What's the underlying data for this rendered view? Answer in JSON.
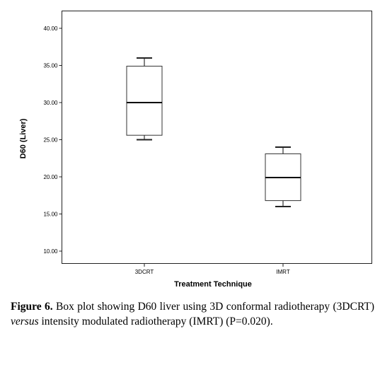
{
  "chart_data": {
    "type": "boxplot",
    "xlabel": "Treatment Technique",
    "ylabel": "D60 (Liver)",
    "ylim": [
      10,
      40
    ],
    "yticks": [
      "10.00",
      "15.00",
      "20.00",
      "25.00",
      "30.00",
      "35.00",
      "40.00"
    ],
    "ytick_values": [
      10,
      15,
      20,
      25,
      30,
      35,
      40
    ],
    "categories": [
      "3DCRT",
      "IMRT"
    ],
    "boxes": [
      {
        "name": "3DCRT",
        "min": 25.0,
        "q1": 25.6,
        "median": 30.0,
        "q3": 34.9,
        "max": 36.0
      },
      {
        "name": "IMRT",
        "min": 16.0,
        "q1": 16.8,
        "median": 19.9,
        "q3": 23.1,
        "max": 24.0
      }
    ],
    "grid": false,
    "legend": "none"
  },
  "caption": {
    "label": "Figure 6.",
    "text_1": " Box plot showing D60 liver using 3D conformal radiotherapy (3DCRT) ",
    "text_italic": "versus",
    "text_2": " intensity modulated radiotherapy (IMRT) (P=0.020)."
  },
  "colors": {
    "frame": "#222222",
    "box_stroke": "#333333",
    "median": "#000000"
  }
}
